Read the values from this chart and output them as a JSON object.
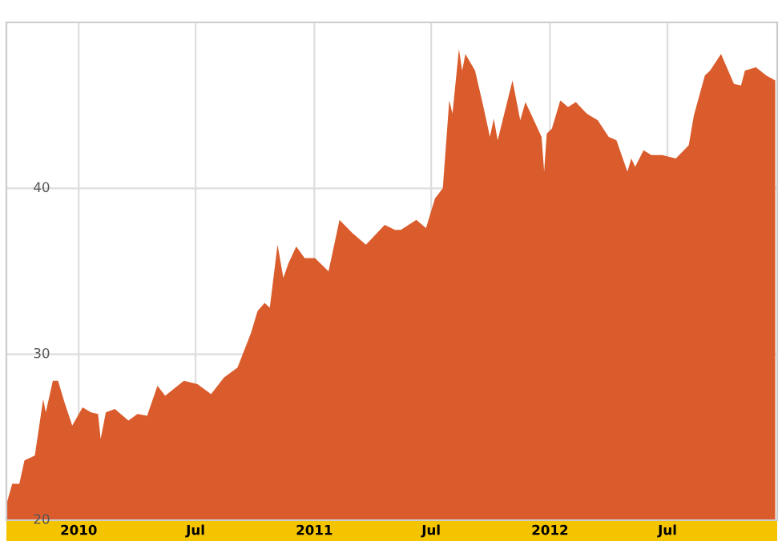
{
  "chart_data": {
    "type": "area",
    "x": [
      "2009-09-12",
      "2009-09-20",
      "2009-10-01",
      "2009-10-09",
      "2009-10-25",
      "2009-11-07",
      "2009-11-11",
      "2009-11-22",
      "2009-11-30",
      "2009-12-10",
      "2009-12-22",
      "2010-01-07",
      "2010-01-20",
      "2010-01-31",
      "2010-02-04",
      "2010-02-12",
      "2010-02-26",
      "2010-03-19",
      "2010-04-02",
      "2010-04-17",
      "2010-05-03",
      "2010-05-15",
      "2010-06-13",
      "2010-07-04",
      "2010-07-25",
      "2010-08-14",
      "2010-09-04",
      "2010-09-25",
      "2010-10-05",
      "2010-10-16",
      "2010-10-24",
      "2010-11-05",
      "2010-11-14",
      "2010-11-22",
      "2010-12-04",
      "2010-12-17",
      "2011-01-02",
      "2011-01-23",
      "2011-02-09",
      "2011-03-01",
      "2011-03-22",
      "2011-04-20",
      "2011-05-06",
      "2011-05-15",
      "2011-06-08",
      "2011-06-23",
      "2011-07-07",
      "2011-07-19",
      "2011-07-29",
      "2011-08-03",
      "2011-08-13",
      "2011-08-18",
      "2011-08-23",
      "2011-09-07",
      "2011-09-20",
      "2011-09-30",
      "2011-10-06",
      "2011-10-12",
      "2011-11-04",
      "2011-11-16",
      "2011-11-24",
      "2011-12-19",
      "2011-12-23",
      "2011-12-27",
      "2012-01-04",
      "2012-01-17",
      "2012-01-29",
      "2012-02-10",
      "2012-02-27",
      "2012-03-15",
      "2012-04-01",
      "2012-04-13",
      "2012-04-30",
      "2012-05-06",
      "2012-05-12",
      "2012-05-25",
      "2012-06-06",
      "2012-06-23",
      "2012-07-14",
      "2012-08-03",
      "2012-08-11",
      "2012-08-28",
      "2012-09-05",
      "2012-09-22",
      "2012-10-12",
      "2012-10-23",
      "2012-10-29",
      "2012-11-15",
      "2012-12-01",
      "2012-12-15"
    ],
    "series": [
      {
        "color": "#da5c2c",
        "values": [
          21.1,
          22.2,
          22.2,
          23.6,
          23.9,
          27.3,
          26.5,
          28.4,
          28.4,
          27.1,
          25.7,
          26.8,
          26.5,
          26.4,
          24.9,
          26.5,
          26.7,
          26.0,
          26.4,
          26.3,
          28.1,
          27.5,
          28.4,
          28.2,
          27.6,
          28.6,
          29.2,
          31.3,
          32.6,
          33.1,
          32.8,
          36.6,
          34.6,
          35.5,
          36.5,
          35.8,
          35.8,
          35.0,
          38.1,
          37.3,
          36.6,
          37.8,
          37.5,
          37.5,
          38.1,
          37.6,
          39.4,
          40.0,
          45.3,
          44.5,
          48.4,
          47.1,
          48.1,
          47.1,
          44.9,
          43.1,
          44.2,
          42.9,
          46.5,
          44.1,
          45.2,
          43.1,
          41.0,
          43.3,
          43.6,
          45.3,
          44.9,
          45.2,
          44.5,
          44.1,
          43.1,
          42.9,
          41.0,
          41.8,
          41.3,
          42.3,
          42.0,
          42.0,
          41.8,
          42.6,
          44.4,
          46.8,
          47.1,
          48.1,
          46.3,
          46.2,
          47.1,
          47.3,
          46.8,
          46.5
        ]
      }
    ],
    "xlim": [
      "2009-09-11",
      "2012-12-18"
    ],
    "xticks": [
      {
        "value": "2010-01-01",
        "label": "2010"
      },
      {
        "value": "2010-07-01",
        "label": "Jul"
      },
      {
        "value": "2011-01-01",
        "label": "2011"
      },
      {
        "value": "2011-07-01",
        "label": "Jul"
      },
      {
        "value": "2012-01-01",
        "label": "2012"
      },
      {
        "value": "2012-07-01",
        "label": "Jul"
      }
    ],
    "ylim": [
      20,
      50
    ],
    "yticks": [
      20,
      30,
      40
    ],
    "grid": true
  }
}
